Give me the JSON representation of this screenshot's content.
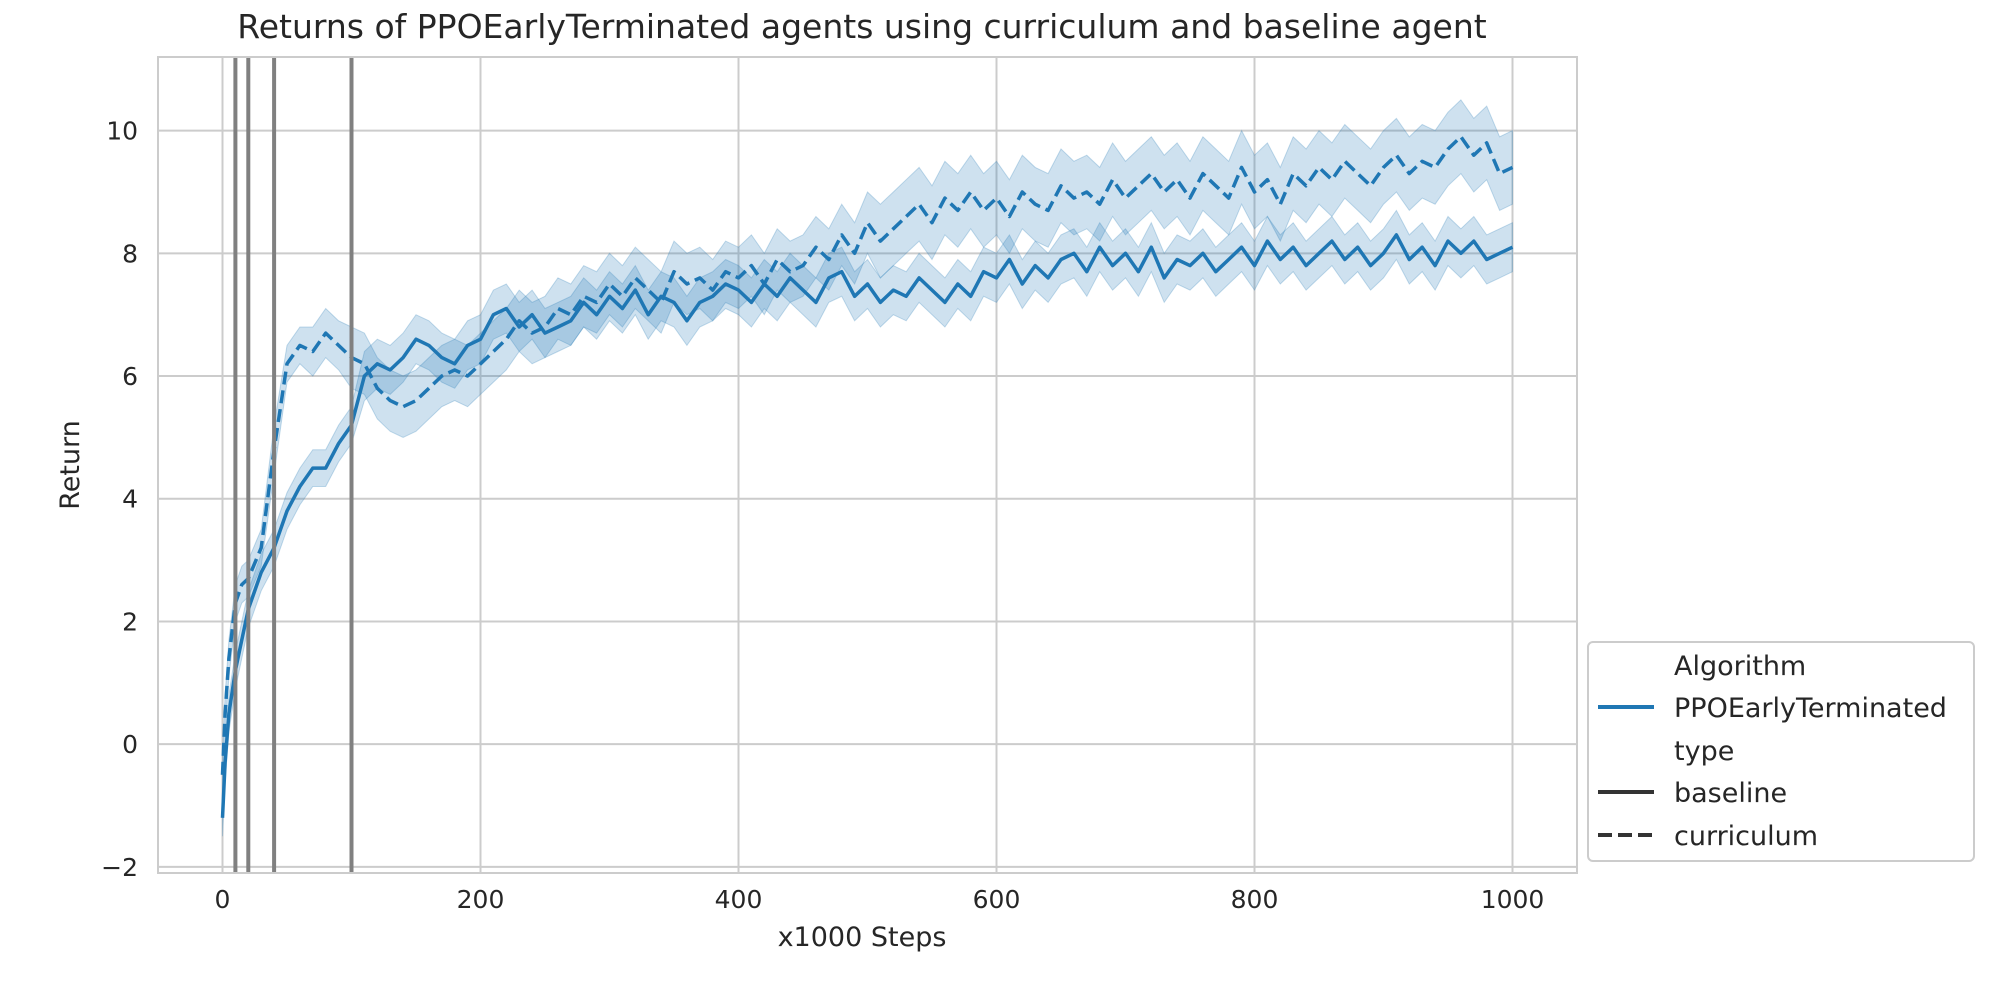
{
  "chart_data": {
    "type": "line",
    "title": "Returns of PPOEarlyTerminated agents using curriculum and baseline agent",
    "xlabel": "x1000 Steps",
    "ylabel": "Return",
    "xlim": [
      -50,
      1050
    ],
    "ylim": [
      -2.1,
      11.2
    ],
    "xticks": [
      0,
      200,
      400,
      600,
      800,
      1000
    ],
    "yticks": [
      -2,
      0,
      2,
      4,
      6,
      8,
      10
    ],
    "grid": true,
    "vlines": [
      10,
      20,
      40,
      100
    ],
    "line_color": "#1f77b4",
    "band_color": "#1f77b4",
    "vline_color": "#808080",
    "legend": {
      "placement": "lower-right, outside plot",
      "header_algorithm": "Algorithm",
      "algorithm_entry": "PPOEarlyTerminated",
      "header_type": "type",
      "type_entries": [
        "baseline",
        "curriculum"
      ]
    },
    "series": [
      {
        "name": "baseline",
        "style": "solid",
        "x": [
          0,
          2,
          5,
          10,
          15,
          20,
          30,
          40,
          50,
          60,
          70,
          80,
          90,
          100,
          110,
          120,
          130,
          140,
          150,
          160,
          170,
          180,
          190,
          200,
          210,
          220,
          230,
          240,
          250,
          260,
          270,
          280,
          290,
          300,
          310,
          320,
          330,
          340,
          350,
          360,
          370,
          380,
          390,
          400,
          410,
          420,
          430,
          440,
          450,
          460,
          470,
          480,
          490,
          500,
          510,
          520,
          530,
          540,
          550,
          560,
          570,
          580,
          590,
          600,
          610,
          620,
          630,
          640,
          650,
          660,
          670,
          680,
          690,
          700,
          710,
          720,
          730,
          740,
          750,
          760,
          770,
          780,
          790,
          800,
          810,
          820,
          830,
          840,
          850,
          860,
          870,
          880,
          890,
          900,
          910,
          920,
          930,
          940,
          950,
          960,
          970,
          980,
          990,
          1000
        ],
        "y": [
          -1.2,
          -0.3,
          0.5,
          1.2,
          1.7,
          2.2,
          2.8,
          3.2,
          3.8,
          4.2,
          4.5,
          4.5,
          4.9,
          5.2,
          6.0,
          6.2,
          6.1,
          6.3,
          6.6,
          6.5,
          6.3,
          6.2,
          6.5,
          6.6,
          7.0,
          7.1,
          6.8,
          7.0,
          6.7,
          6.8,
          6.9,
          7.2,
          7.0,
          7.3,
          7.1,
          7.4,
          7.0,
          7.3,
          7.2,
          6.9,
          7.2,
          7.3,
          7.5,
          7.4,
          7.2,
          7.5,
          7.3,
          7.6,
          7.4,
          7.2,
          7.6,
          7.7,
          7.3,
          7.5,
          7.2,
          7.4,
          7.3,
          7.6,
          7.4,
          7.2,
          7.5,
          7.3,
          7.7,
          7.6,
          7.9,
          7.5,
          7.8,
          7.6,
          7.9,
          8.0,
          7.7,
          8.1,
          7.8,
          8.0,
          7.7,
          8.1,
          7.6,
          7.9,
          7.8,
          8.0,
          7.7,
          7.9,
          8.1,
          7.8,
          8.2,
          7.9,
          8.1,
          7.8,
          8.0,
          8.2,
          7.9,
          8.1,
          7.8,
          8.0,
          8.3,
          7.9,
          8.1,
          7.8,
          8.2,
          8.0,
          8.2,
          7.9,
          8.0,
          8.1
        ],
        "lower": [
          -1.5,
          -0.6,
          0.2,
          0.9,
          1.4,
          1.9,
          2.5,
          2.9,
          3.5,
          3.9,
          4.2,
          4.2,
          4.6,
          4.9,
          5.6,
          5.8,
          5.7,
          5.9,
          6.2,
          6.1,
          5.9,
          5.8,
          6.1,
          6.2,
          6.6,
          6.7,
          6.4,
          6.6,
          6.3,
          6.4,
          6.5,
          6.8,
          6.6,
          6.9,
          6.7,
          7.0,
          6.6,
          6.9,
          6.8,
          6.5,
          6.8,
          6.9,
          7.1,
          7.0,
          6.8,
          7.1,
          6.9,
          7.2,
          7.0,
          6.8,
          7.2,
          7.3,
          6.9,
          7.1,
          6.8,
          7.0,
          6.9,
          7.2,
          7.0,
          6.8,
          7.1,
          6.9,
          7.3,
          7.2,
          7.5,
          7.1,
          7.4,
          7.2,
          7.5,
          7.6,
          7.3,
          7.7,
          7.4,
          7.6,
          7.3,
          7.7,
          7.2,
          7.5,
          7.4,
          7.6,
          7.3,
          7.5,
          7.7,
          7.4,
          7.8,
          7.5,
          7.7,
          7.4,
          7.6,
          7.8,
          7.5,
          7.7,
          7.4,
          7.6,
          7.9,
          7.5,
          7.7,
          7.4,
          7.8,
          7.6,
          7.8,
          7.5,
          7.6,
          7.7
        ],
        "upper": [
          -0.9,
          0.0,
          0.8,
          1.5,
          2.0,
          2.5,
          3.1,
          3.5,
          4.1,
          4.5,
          4.8,
          4.8,
          5.2,
          5.5,
          6.4,
          6.6,
          6.5,
          6.7,
          7.0,
          6.9,
          6.7,
          6.6,
          6.9,
          7.0,
          7.4,
          7.5,
          7.2,
          7.4,
          7.1,
          7.2,
          7.3,
          7.6,
          7.4,
          7.7,
          7.5,
          7.8,
          7.4,
          7.7,
          7.6,
          7.3,
          7.6,
          7.7,
          7.9,
          7.8,
          7.6,
          7.9,
          7.7,
          8.0,
          7.8,
          7.6,
          8.0,
          8.1,
          7.7,
          7.9,
          7.6,
          7.8,
          7.7,
          8.0,
          7.8,
          7.6,
          7.9,
          7.7,
          8.1,
          8.0,
          8.3,
          7.9,
          8.2,
          8.0,
          8.3,
          8.4,
          8.1,
          8.5,
          8.2,
          8.4,
          8.1,
          8.5,
          8.0,
          8.3,
          8.2,
          8.4,
          8.1,
          8.3,
          8.5,
          8.2,
          8.6,
          8.3,
          8.5,
          8.2,
          8.4,
          8.6,
          8.3,
          8.5,
          8.2,
          8.4,
          8.7,
          8.3,
          8.5,
          8.2,
          8.6,
          8.4,
          8.6,
          8.3,
          8.4,
          8.5
        ]
      },
      {
        "name": "curriculum",
        "style": "dashed",
        "x": [
          0,
          2,
          5,
          10,
          15,
          20,
          30,
          40,
          50,
          60,
          70,
          80,
          90,
          100,
          110,
          120,
          130,
          140,
          150,
          160,
          170,
          180,
          190,
          200,
          210,
          220,
          230,
          240,
          250,
          260,
          270,
          280,
          290,
          300,
          310,
          320,
          330,
          340,
          350,
          360,
          370,
          380,
          390,
          400,
          410,
          420,
          430,
          440,
          450,
          460,
          470,
          480,
          490,
          500,
          510,
          520,
          530,
          540,
          550,
          560,
          570,
          580,
          590,
          600,
          610,
          620,
          630,
          640,
          650,
          660,
          670,
          680,
          690,
          700,
          710,
          720,
          730,
          740,
          750,
          760,
          770,
          780,
          790,
          800,
          810,
          820,
          830,
          840,
          850,
          860,
          870,
          880,
          890,
          900,
          910,
          920,
          930,
          940,
          950,
          960,
          970,
          980,
          990,
          1000
        ],
        "y": [
          -0.5,
          0.5,
          1.4,
          2.3,
          2.6,
          2.7,
          3.2,
          4.8,
          6.2,
          6.5,
          6.4,
          6.7,
          6.5,
          6.3,
          6.2,
          5.8,
          5.6,
          5.5,
          5.6,
          5.8,
          6.0,
          6.1,
          6.0,
          6.2,
          6.4,
          6.6,
          6.9,
          6.7,
          6.8,
          7.1,
          7.0,
          7.3,
          7.2,
          7.5,
          7.3,
          7.6,
          7.4,
          7.2,
          7.7,
          7.5,
          7.6,
          7.4,
          7.7,
          7.6,
          7.8,
          7.5,
          7.9,
          7.7,
          7.8,
          8.1,
          7.9,
          8.3,
          8.0,
          8.5,
          8.2,
          8.4,
          8.6,
          8.8,
          8.5,
          8.9,
          8.7,
          9.0,
          8.7,
          8.9,
          8.6,
          9.0,
          8.8,
          8.7,
          9.1,
          8.9,
          9.0,
          8.8,
          9.2,
          8.9,
          9.1,
          9.3,
          9.0,
          9.2,
          8.9,
          9.3,
          9.1,
          8.9,
          9.4,
          9.0,
          9.2,
          8.8,
          9.3,
          9.1,
          9.4,
          9.2,
          9.5,
          9.3,
          9.1,
          9.4,
          9.6,
          9.3,
          9.5,
          9.4,
          9.7,
          9.9,
          9.6,
          9.8,
          9.3,
          9.4
        ],
        "lower": [
          -0.8,
          0.2,
          1.1,
          2.0,
          2.3,
          2.4,
          2.9,
          4.4,
          5.9,
          6.2,
          6.0,
          6.3,
          6.1,
          5.8,
          5.7,
          5.3,
          5.1,
          5.0,
          5.1,
          5.3,
          5.5,
          5.6,
          5.5,
          5.7,
          5.9,
          6.1,
          6.4,
          6.2,
          6.3,
          6.6,
          6.5,
          6.8,
          6.7,
          7.0,
          6.8,
          7.1,
          6.9,
          6.7,
          7.2,
          7.0,
          7.1,
          6.9,
          7.2,
          7.1,
          7.3,
          7.0,
          7.4,
          7.2,
          7.3,
          7.6,
          7.4,
          7.8,
          7.5,
          8.0,
          7.6,
          7.8,
          8.0,
          8.2,
          7.9,
          8.3,
          8.1,
          8.4,
          8.1,
          8.3,
          8.0,
          8.4,
          8.2,
          8.1,
          8.5,
          8.3,
          8.4,
          8.2,
          8.6,
          8.3,
          8.5,
          8.7,
          8.4,
          8.6,
          8.3,
          8.7,
          8.5,
          8.3,
          8.8,
          8.4,
          8.6,
          8.2,
          8.7,
          8.5,
          8.8,
          8.6,
          8.9,
          8.7,
          8.5,
          8.8,
          9.0,
          8.7,
          8.9,
          8.8,
          9.1,
          9.3,
          9.0,
          9.2,
          8.7,
          8.8
        ],
        "upper": [
          -0.2,
          0.8,
          1.7,
          2.6,
          2.9,
          3.0,
          3.5,
          5.2,
          6.5,
          6.8,
          6.8,
          7.1,
          6.9,
          6.8,
          6.7,
          6.3,
          6.1,
          6.0,
          6.1,
          6.3,
          6.5,
          6.6,
          6.5,
          6.7,
          6.9,
          7.1,
          7.4,
          7.2,
          7.3,
          7.6,
          7.5,
          7.8,
          7.7,
          8.0,
          7.8,
          8.1,
          7.9,
          7.7,
          8.2,
          8.0,
          8.1,
          7.9,
          8.2,
          8.1,
          8.3,
          8.0,
          8.4,
          8.2,
          8.3,
          8.6,
          8.4,
          8.8,
          8.5,
          9.0,
          8.8,
          9.0,
          9.2,
          9.4,
          9.1,
          9.5,
          9.3,
          9.6,
          9.3,
          9.5,
          9.2,
          9.6,
          9.4,
          9.3,
          9.7,
          9.5,
          9.6,
          9.4,
          9.8,
          9.5,
          9.7,
          9.9,
          9.6,
          9.8,
          9.5,
          9.9,
          9.7,
          9.5,
          10.0,
          9.6,
          9.8,
          9.4,
          9.9,
          9.7,
          10.0,
          9.8,
          10.1,
          9.9,
          9.7,
          10.0,
          10.2,
          9.9,
          10.1,
          10.0,
          10.3,
          10.5,
          10.2,
          10.4,
          9.9,
          10.0
        ]
      }
    ]
  }
}
